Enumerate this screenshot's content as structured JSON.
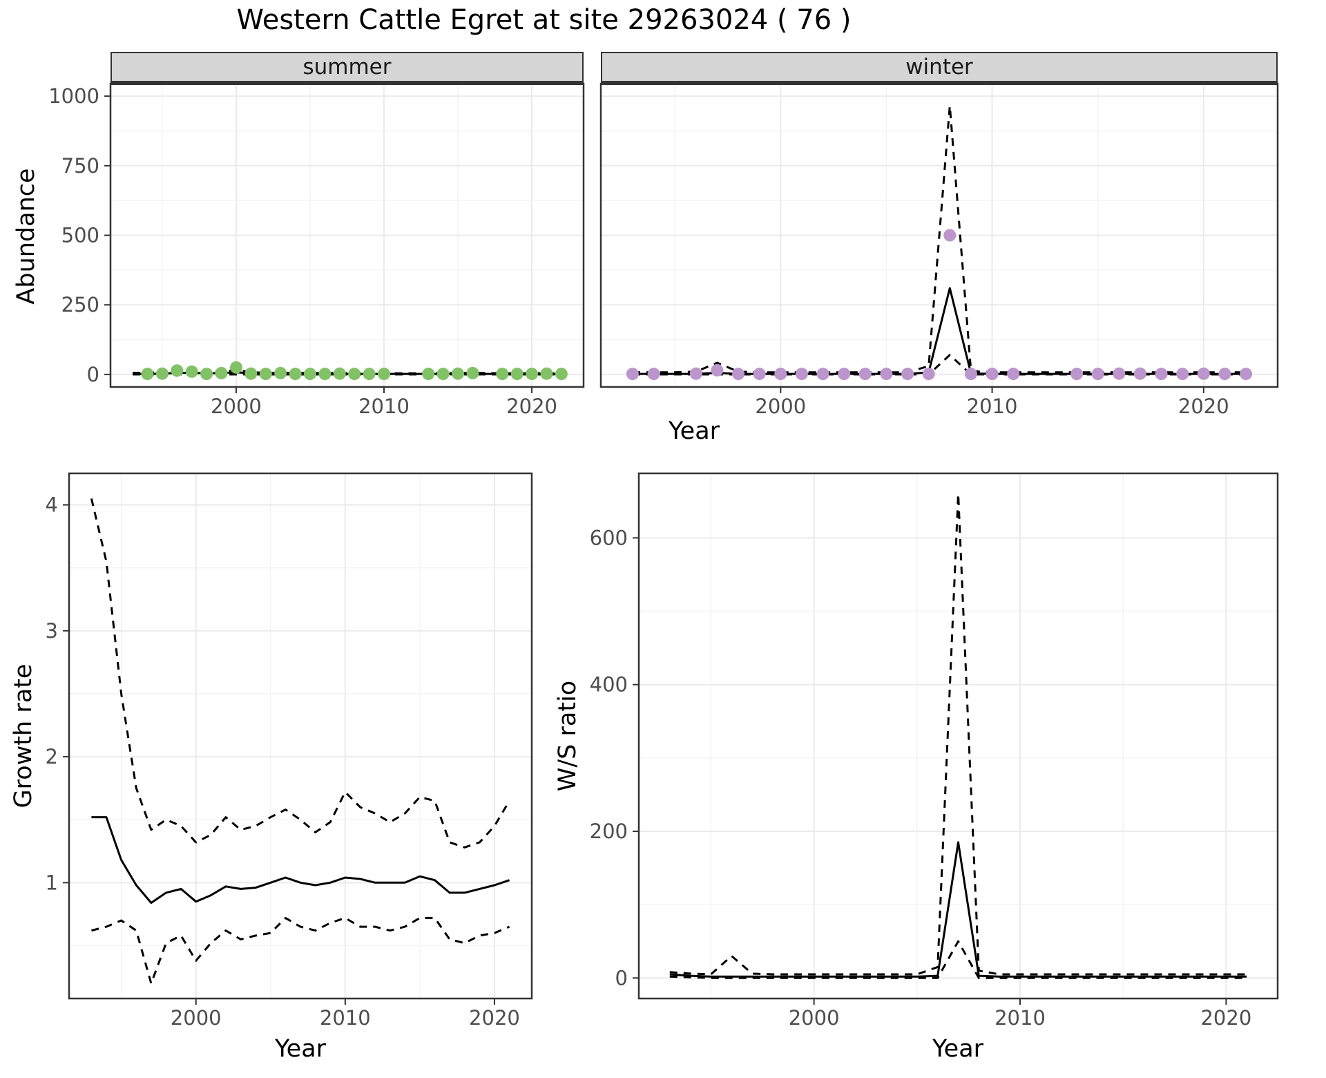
{
  "title": "Western Cattle Egret at site 29263024 ( 76 )",
  "colors": {
    "line": "#000000",
    "grid_major": "#EBEBEB",
    "grid_minor": "#F4F4F4",
    "panel_border": "#333333",
    "strip_background": "#D6D6D6",
    "tick_text": "#4D4D4D",
    "summer_point": "#82C266",
    "winter_point": "#BC95CD"
  },
  "chart_data": [
    {
      "id": "abundance-summer",
      "type": "scatter",
      "facet_label": "summer",
      "xlabel": "Year",
      "ylabel": "Abundance",
      "xlim": [
        1991.5,
        2023.5
      ],
      "ylim": [
        -45,
        1045
      ],
      "xticks": [
        2000,
        2010,
        2020
      ],
      "yticks": [
        0,
        250,
        500,
        750,
        1000
      ],
      "grid": true,
      "point_color": "#82C266",
      "points": {
        "x": [
          1994,
          1995,
          1996,
          1997,
          1998,
          1999,
          2000,
          2001,
          2002,
          2003,
          2004,
          2005,
          2006,
          2007,
          2008,
          2009,
          2010,
          2013,
          2014,
          2015,
          2016,
          2018,
          2019,
          2020,
          2021,
          2022
        ],
        "y": [
          2,
          3,
          14,
          10,
          2,
          5,
          25,
          3,
          2,
          5,
          2,
          2,
          2,
          3,
          2,
          2,
          2,
          2,
          2,
          3,
          5,
          2,
          2,
          2,
          3,
          2
        ]
      },
      "lines": [
        {
          "name": "fit",
          "style": "solid",
          "x": [
            1993,
            1994,
            1995,
            1996,
            1997,
            1998,
            1999,
            2000,
            2001,
            2002,
            2003,
            2004,
            2005,
            2006,
            2007,
            2008,
            2009,
            2010,
            2011,
            2012,
            2013,
            2014,
            2015,
            2016,
            2017,
            2018,
            2019,
            2020,
            2021,
            2022
          ],
          "y": [
            2,
            2,
            3,
            6,
            6,
            4,
            5,
            8,
            4,
            3,
            3,
            3,
            2,
            2,
            2,
            2,
            2,
            2,
            2,
            2,
            2,
            2,
            2,
            3,
            2,
            2,
            2,
            2,
            2,
            2
          ]
        },
        {
          "name": "ci-upper",
          "style": "dashed",
          "x": [
            1993,
            1994,
            1995,
            1996,
            1997,
            1998,
            1999,
            2000,
            2001,
            2002,
            2003,
            2004,
            2005,
            2006,
            2007,
            2008,
            2009,
            2010,
            2011,
            2012,
            2013,
            2014,
            2015,
            2016,
            2017,
            2018,
            2019,
            2020,
            2021,
            2022
          ],
          "y": [
            6,
            6,
            8,
            14,
            13,
            9,
            10,
            16,
            8,
            6,
            6,
            6,
            5,
            5,
            5,
            5,
            5,
            5,
            4,
            4,
            5,
            5,
            5,
            6,
            5,
            4,
            4,
            4,
            4,
            4
          ]
        },
        {
          "name": "ci-lower",
          "style": "dashed",
          "x": [
            1993,
            1994,
            1995,
            1996,
            1997,
            1998,
            1999,
            2000,
            2001,
            2002,
            2003,
            2004,
            2005,
            2006,
            2007,
            2008,
            2009,
            2010,
            2011,
            2012,
            2013,
            2014,
            2015,
            2016,
            2017,
            2018,
            2019,
            2020,
            2021,
            2022
          ],
          "y": [
            0,
            0,
            0,
            0,
            0,
            0,
            0,
            0,
            0,
            0,
            0,
            0,
            0,
            0,
            0,
            0,
            0,
            0,
            0,
            0,
            0,
            0,
            0,
            0,
            0,
            0,
            0,
            0,
            0,
            0
          ]
        }
      ]
    },
    {
      "id": "abundance-winter",
      "type": "scatter",
      "facet_label": "winter",
      "xlabel": "Year",
      "ylabel": "Abundance",
      "xlim": [
        1991.5,
        2023.5
      ],
      "ylim": [
        -45,
        1045
      ],
      "xticks": [
        2000,
        2010,
        2020
      ],
      "yticks": [
        0,
        250,
        500,
        750,
        1000
      ],
      "grid": true,
      "point_color": "#BC95CD",
      "points": {
        "x": [
          1993,
          1994,
          1996,
          1997,
          1998,
          1999,
          2000,
          2001,
          2002,
          2003,
          2004,
          2005,
          2006,
          2007,
          2008,
          2009,
          2010,
          2011,
          2014,
          2015,
          2016,
          2017,
          2018,
          2019,
          2020,
          2021,
          2022
        ],
        "y": [
          2,
          2,
          3,
          15,
          2,
          2,
          2,
          2,
          2,
          2,
          2,
          2,
          2,
          2,
          500,
          2,
          2,
          2,
          2,
          2,
          3,
          3,
          2,
          2,
          3,
          2,
          2
        ]
      },
      "lines": [
        {
          "name": "fit",
          "style": "solid",
          "x": [
            1993,
            1994,
            1995,
            1996,
            1997,
            1998,
            1999,
            2000,
            2001,
            2002,
            2003,
            2004,
            2005,
            2006,
            2007,
            2008,
            2009,
            2010,
            2011,
            2012,
            2013,
            2014,
            2015,
            2016,
            2017,
            2018,
            2019,
            2020,
            2021,
            2022
          ],
          "y": [
            2,
            2,
            2,
            2,
            6,
            2,
            2,
            2,
            2,
            2,
            2,
            2,
            2,
            2,
            8,
            310,
            4,
            2,
            2,
            2,
            2,
            2,
            2,
            2,
            2,
            2,
            2,
            2,
            2,
            2
          ]
        },
        {
          "name": "ci-upper",
          "style": "dashed",
          "x": [
            1993,
            1994,
            1995,
            1996,
            1997,
            1998,
            1999,
            2000,
            2001,
            2002,
            2003,
            2004,
            2005,
            2006,
            2007,
            2008,
            2009,
            2010,
            2011,
            2012,
            2013,
            2014,
            2015,
            2016,
            2017,
            2018,
            2019,
            2020,
            2021,
            2022
          ],
          "y": [
            8,
            8,
            8,
            10,
            42,
            10,
            8,
            8,
            8,
            8,
            8,
            8,
            8,
            8,
            30,
            965,
            12,
            8,
            8,
            8,
            8,
            8,
            8,
            8,
            8,
            8,
            8,
            8,
            8,
            8
          ]
        },
        {
          "name": "ci-lower",
          "style": "dashed",
          "x": [
            1993,
            1994,
            1995,
            1996,
            1997,
            1998,
            1999,
            2000,
            2001,
            2002,
            2003,
            2004,
            2005,
            2006,
            2007,
            2008,
            2009,
            2010,
            2011,
            2012,
            2013,
            2014,
            2015,
            2016,
            2017,
            2018,
            2019,
            2020,
            2021,
            2022
          ],
          "y": [
            0,
            0,
            0,
            0,
            0,
            0,
            0,
            0,
            0,
            0,
            0,
            0,
            0,
            0,
            0,
            70,
            0,
            0,
            0,
            0,
            0,
            0,
            0,
            0,
            0,
            0,
            0,
            0,
            0,
            0
          ]
        }
      ]
    },
    {
      "id": "growth-rate",
      "type": "line",
      "xlabel": "Year",
      "ylabel": "Growth rate",
      "xlim": [
        1991.5,
        2022.5
      ],
      "ylim": [
        0.08,
        4.25
      ],
      "xticks": [
        2000,
        2010,
        2020
      ],
      "yticks": [
        1,
        2,
        3,
        4
      ],
      "grid": true,
      "lines": [
        {
          "name": "fit",
          "style": "solid",
          "x": [
            1993,
            1994,
            1995,
            1996,
            1997,
            1998,
            1999,
            2000,
            2001,
            2002,
            2003,
            2004,
            2005,
            2006,
            2007,
            2008,
            2009,
            2010,
            2011,
            2012,
            2013,
            2014,
            2015,
            2016,
            2017,
            2018,
            2019,
            2020,
            2021
          ],
          "y": [
            1.52,
            1.52,
            1.18,
            0.98,
            0.84,
            0.92,
            0.95,
            0.85,
            0.9,
            0.97,
            0.95,
            0.96,
            1.0,
            1.04,
            1.0,
            0.98,
            1.0,
            1.04,
            1.03,
            1.0,
            1.0,
            1.0,
            1.05,
            1.02,
            0.92,
            0.92,
            0.95,
            0.98,
            1.02
          ]
        },
        {
          "name": "ci-upper",
          "style": "dashed",
          "x": [
            1993,
            1994,
            1995,
            1996,
            1997,
            1998,
            1999,
            2000,
            2001,
            2002,
            2003,
            2004,
            2005,
            2006,
            2007,
            2008,
            2009,
            2010,
            2011,
            2012,
            2013,
            2014,
            2015,
            2016,
            2017,
            2018,
            2019,
            2020,
            2021
          ],
          "y": [
            4.05,
            3.55,
            2.5,
            1.75,
            1.42,
            1.5,
            1.45,
            1.32,
            1.38,
            1.52,
            1.42,
            1.45,
            1.52,
            1.58,
            1.5,
            1.4,
            1.48,
            1.72,
            1.6,
            1.55,
            1.48,
            1.55,
            1.68,
            1.65,
            1.32,
            1.28,
            1.32,
            1.45,
            1.65
          ]
        },
        {
          "name": "ci-lower",
          "style": "dashed",
          "x": [
            1993,
            1994,
            1995,
            1996,
            1997,
            1998,
            1999,
            2000,
            2001,
            2002,
            2003,
            2004,
            2005,
            2006,
            2007,
            2008,
            2009,
            2010,
            2011,
            2012,
            2013,
            2014,
            2015,
            2016,
            2017,
            2018,
            2019,
            2020,
            2021
          ],
          "y": [
            0.62,
            0.65,
            0.7,
            0.62,
            0.2,
            0.52,
            0.58,
            0.38,
            0.52,
            0.62,
            0.55,
            0.58,
            0.6,
            0.72,
            0.65,
            0.62,
            0.68,
            0.72,
            0.65,
            0.65,
            0.62,
            0.65,
            0.72,
            0.72,
            0.55,
            0.52,
            0.58,
            0.6,
            0.65
          ]
        }
      ]
    },
    {
      "id": "ws-ratio",
      "type": "line",
      "xlabel": "Year",
      "ylabel": "W/S ratio",
      "xlim": [
        1991.5,
        2022.5
      ],
      "ylim": [
        -28,
        688
      ],
      "xticks": [
        2000,
        2010,
        2020
      ],
      "yticks": [
        0,
        200,
        400,
        600
      ],
      "grid": true,
      "lines": [
        {
          "name": "fit",
          "style": "solid",
          "x": [
            1993,
            1994,
            1995,
            1996,
            1997,
            1998,
            1999,
            2000,
            2001,
            2002,
            2003,
            2004,
            2005,
            2006,
            2007,
            2008,
            2009,
            2010,
            2011,
            2012,
            2013,
            2014,
            2015,
            2016,
            2017,
            2018,
            2019,
            2020,
            2021
          ],
          "y": [
            5,
            3,
            2,
            2,
            2,
            2,
            2,
            2,
            2,
            2,
            2,
            2,
            2,
            3,
            185,
            3,
            2,
            2,
            2,
            2,
            2,
            2,
            2,
            2,
            2,
            2,
            2,
            2,
            2
          ]
        },
        {
          "name": "ci-upper",
          "style": "dashed",
          "x": [
            1993,
            1994,
            1995,
            1996,
            1997,
            1998,
            1999,
            2000,
            2001,
            2002,
            2003,
            2004,
            2005,
            2006,
            2007,
            2008,
            2009,
            2010,
            2011,
            2012,
            2013,
            2014,
            2015,
            2016,
            2017,
            2018,
            2019,
            2020,
            2021
          ],
          "y": [
            8,
            6,
            5,
            30,
            6,
            5,
            5,
            5,
            5,
            5,
            5,
            5,
            5,
            15,
            660,
            10,
            5,
            5,
            5,
            5,
            5,
            5,
            5,
            5,
            5,
            5,
            5,
            5,
            5
          ]
        },
        {
          "name": "ci-lower",
          "style": "dashed",
          "x": [
            1993,
            1994,
            1995,
            1996,
            1997,
            1998,
            1999,
            2000,
            2001,
            2002,
            2003,
            2004,
            2005,
            2006,
            2007,
            2008,
            2009,
            2010,
            2011,
            2012,
            2013,
            2014,
            2015,
            2016,
            2017,
            2018,
            2019,
            2020,
            2021
          ],
          "y": [
            2,
            1,
            0,
            0,
            0,
            0,
            0,
            0,
            0,
            0,
            0,
            0,
            0,
            0,
            50,
            0,
            0,
            0,
            0,
            0,
            0,
            0,
            0,
            0,
            0,
            0,
            0,
            0,
            0
          ]
        }
      ]
    }
  ]
}
